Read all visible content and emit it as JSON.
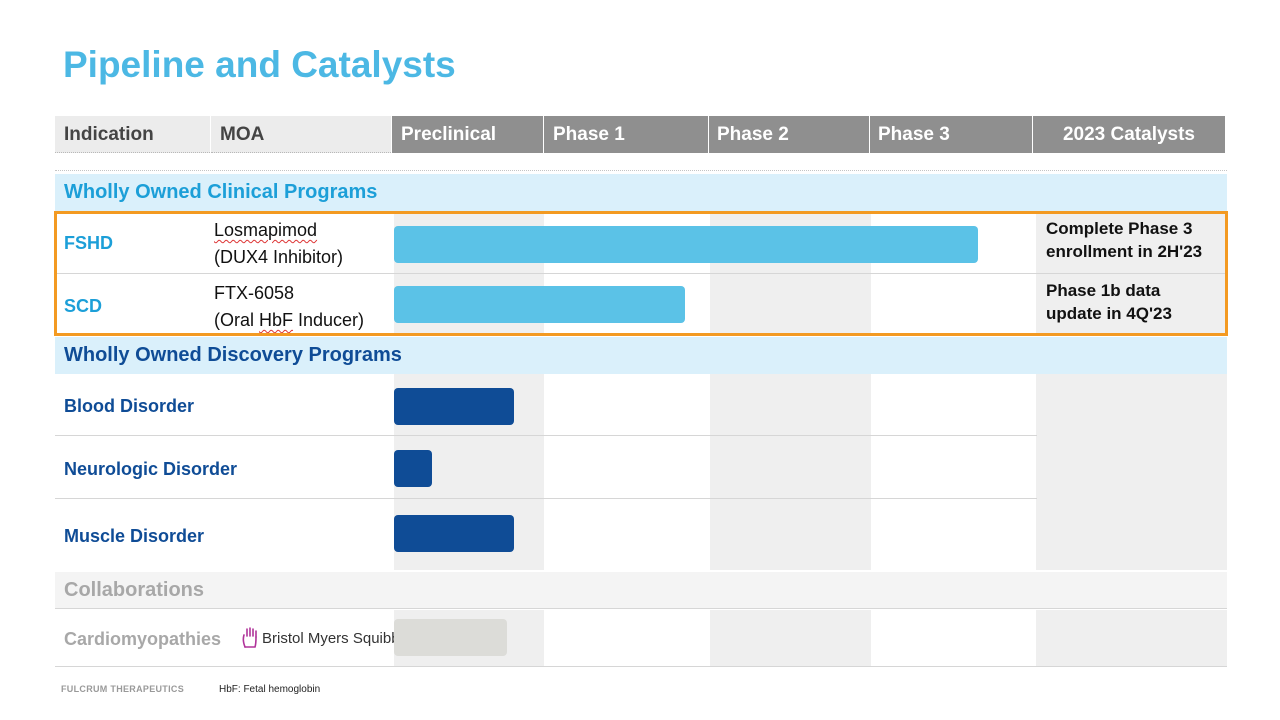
{
  "title": "Pipeline and Catalysts",
  "headers": {
    "indication": "Indication",
    "moa": "MOA",
    "stages": [
      "Preclinical",
      "Phase 1",
      "Phase 2",
      "Phase 3"
    ],
    "catalysts": "2023 Catalysts"
  },
  "sections": {
    "clinical": "Wholly Owned Clinical Programs",
    "discovery": "Wholly Owned Discovery Programs",
    "collaborations": "Collaborations"
  },
  "programs": [
    {
      "indication": "FSHD",
      "moa_line1": "Losmapimod",
      "moa_line2": "(DUX4 Inhibitor)",
      "catalyst_line1": "Complete Phase 3",
      "catalyst_line2": "enrollment in 2H'23"
    },
    {
      "indication": "SCD",
      "moa_line1": "FTX-6058",
      "moa_line2": "(Oral HbF Inducer)",
      "catalyst_line1": "Phase 1b data",
      "catalyst_line2": "update in 4Q'23"
    },
    {
      "indication": "Blood Disorder"
    },
    {
      "indication": "Neurologic Disorder"
    },
    {
      "indication": "Muscle Disorder"
    },
    {
      "indication": "Cardiomyopathies",
      "partner": "Bristol Myers Squibb",
      "partner_icon": "bms-hand-logo-icon"
    }
  ],
  "colors": {
    "title": "#4cb8e4",
    "clinical_bar": "#5bc2e7",
    "discovery_bar": "#0f4c96",
    "collaboration_bar": "#dcdcd8",
    "highlight": "#f39a22",
    "header_grey": "#8f8f8f"
  },
  "chart_data": {
    "type": "bar",
    "orientation": "horizontal",
    "stages": [
      "Preclinical",
      "Phase 1",
      "Phase 2",
      "Phase 3"
    ],
    "categories": [
      "FSHD",
      "SCD",
      "Blood Disorder",
      "Neurologic Disorder",
      "Muscle Disorder",
      "Cardiomyopathies"
    ],
    "values": [
      3.65,
      1.85,
      0.8,
      0.25,
      0.8,
      0.75
    ],
    "xlim": [
      0,
      4
    ]
  },
  "footer": {
    "company": "FULCRUM THERAPEUTICS",
    "note": "HbF: Fetal hemoglobin"
  }
}
